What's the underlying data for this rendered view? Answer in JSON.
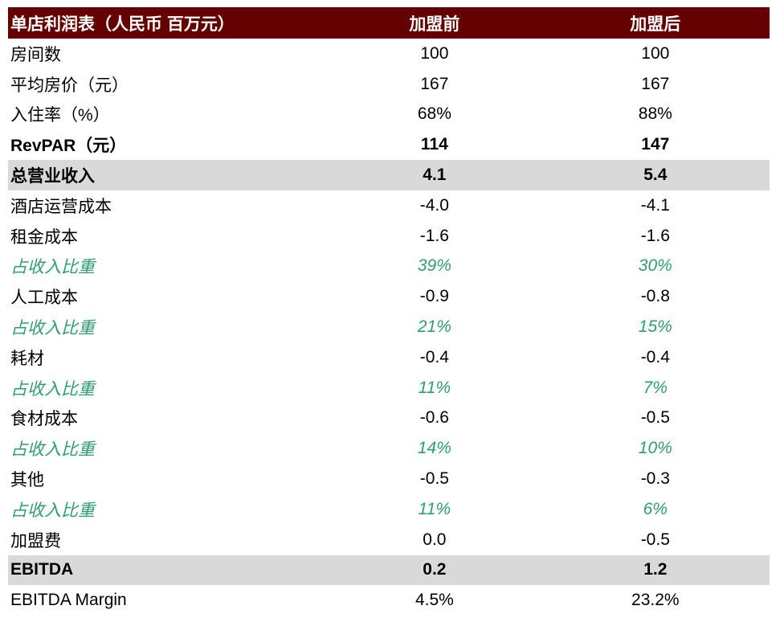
{
  "colors": {
    "header_background": "#650000",
    "header_text": "#ffffff",
    "subtotal_band": "#d9d9d9",
    "percent_text": "#2f9e6e",
    "body_text": "#000000"
  },
  "table": {
    "title": "单店利润表（人民币 百万元）",
    "columns": [
      "加盟前",
      "加盟后"
    ],
    "rows": [
      {
        "label": "房间数",
        "before": "100",
        "after": "100",
        "style": "normal"
      },
      {
        "label": "平均房价（元）",
        "before": "167",
        "after": "167",
        "style": "normal"
      },
      {
        "label": "入住率（%）",
        "before": "68%",
        "after": "88%",
        "style": "normal"
      },
      {
        "label": "RevPAR（元）",
        "before": "114",
        "after": "147",
        "style": "bold"
      },
      {
        "label": "总营业收入",
        "before": "4.1",
        "after": "5.4",
        "style": "total"
      },
      {
        "label": "酒店运营成本",
        "before": "-4.0",
        "after": "-4.1",
        "style": "normal"
      },
      {
        "label": "租金成本",
        "before": "-1.6",
        "after": "-1.6",
        "style": "normal"
      },
      {
        "label": "占收入比重",
        "before": "39%",
        "after": "30%",
        "style": "pct"
      },
      {
        "label": "人工成本",
        "before": "-0.9",
        "after": "-0.8",
        "style": "normal"
      },
      {
        "label": "占收入比重",
        "before": "21%",
        "after": "15%",
        "style": "pct"
      },
      {
        "label": "耗材",
        "before": "-0.4",
        "after": "-0.4",
        "style": "normal"
      },
      {
        "label": "占收入比重",
        "before": "11%",
        "after": "7%",
        "style": "pct"
      },
      {
        "label": "食材成本",
        "before": "-0.6",
        "after": "-0.5",
        "style": "normal"
      },
      {
        "label": "占收入比重",
        "before": "14%",
        "after": "10%",
        "style": "pct"
      },
      {
        "label": "其他",
        "before": "-0.5",
        "after": "-0.3",
        "style": "normal"
      },
      {
        "label": "占收入比重",
        "before": "11%",
        "after": "6%",
        "style": "pct"
      },
      {
        "label": "加盟费",
        "before": "0.0",
        "after": "-0.5",
        "style": "normal"
      },
      {
        "label": "EBITDA",
        "before": "0.2",
        "after": "1.2",
        "style": "total"
      },
      {
        "label": "EBITDA Margin",
        "before": "4.5%",
        "after": "23.2%",
        "style": "normal"
      }
    ]
  }
}
